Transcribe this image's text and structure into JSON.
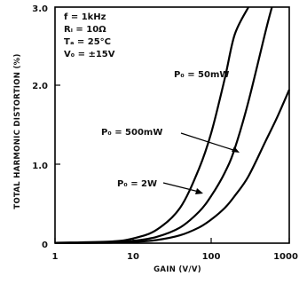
{
  "chart_data": {
    "type": "line",
    "title": "",
    "xlabel": "GAIN (V/V)",
    "ylabel": "TOTAL HARMONIC DISTORTION (%)",
    "x_scale": "log",
    "xlim": [
      1,
      1000
    ],
    "ylim": [
      0,
      3.0
    ],
    "x_tick_labels": [
      "1",
      "10",
      "100",
      "1000"
    ],
    "y_tick_labels": [
      "0",
      "1.0",
      "2.0",
      "3.0"
    ],
    "grid": false,
    "conditions": [
      "f = 1kHz",
      "Rₗ = 10Ω",
      "Tₐ = 25°C",
      "V₀ = ±15V"
    ],
    "series": [
      {
        "name": "P₀ = 50mW",
        "x": [
          1,
          5,
          10,
          20,
          40,
          70,
          100,
          150,
          200,
          300
        ],
        "y": [
          0.005,
          0.02,
          0.06,
          0.17,
          0.45,
          0.95,
          1.4,
          2.1,
          2.65,
          3.0
        ]
      },
      {
        "name": "P₀ = 500mW",
        "x": [
          1,
          5,
          10,
          20,
          40,
          70,
          100,
          150,
          200,
          300,
          500,
          600
        ],
        "y": [
          0.003,
          0.01,
          0.03,
          0.08,
          0.2,
          0.4,
          0.6,
          0.9,
          1.2,
          1.8,
          2.7,
          3.0
        ]
      },
      {
        "name": "P₀ = 2W",
        "x": [
          1,
          5,
          10,
          20,
          40,
          70,
          100,
          150,
          200,
          300,
          500,
          700,
          1000
        ],
        "y": [
          0.002,
          0.006,
          0.015,
          0.04,
          0.1,
          0.2,
          0.3,
          0.45,
          0.6,
          0.85,
          1.3,
          1.6,
          1.95
        ]
      }
    ]
  }
}
